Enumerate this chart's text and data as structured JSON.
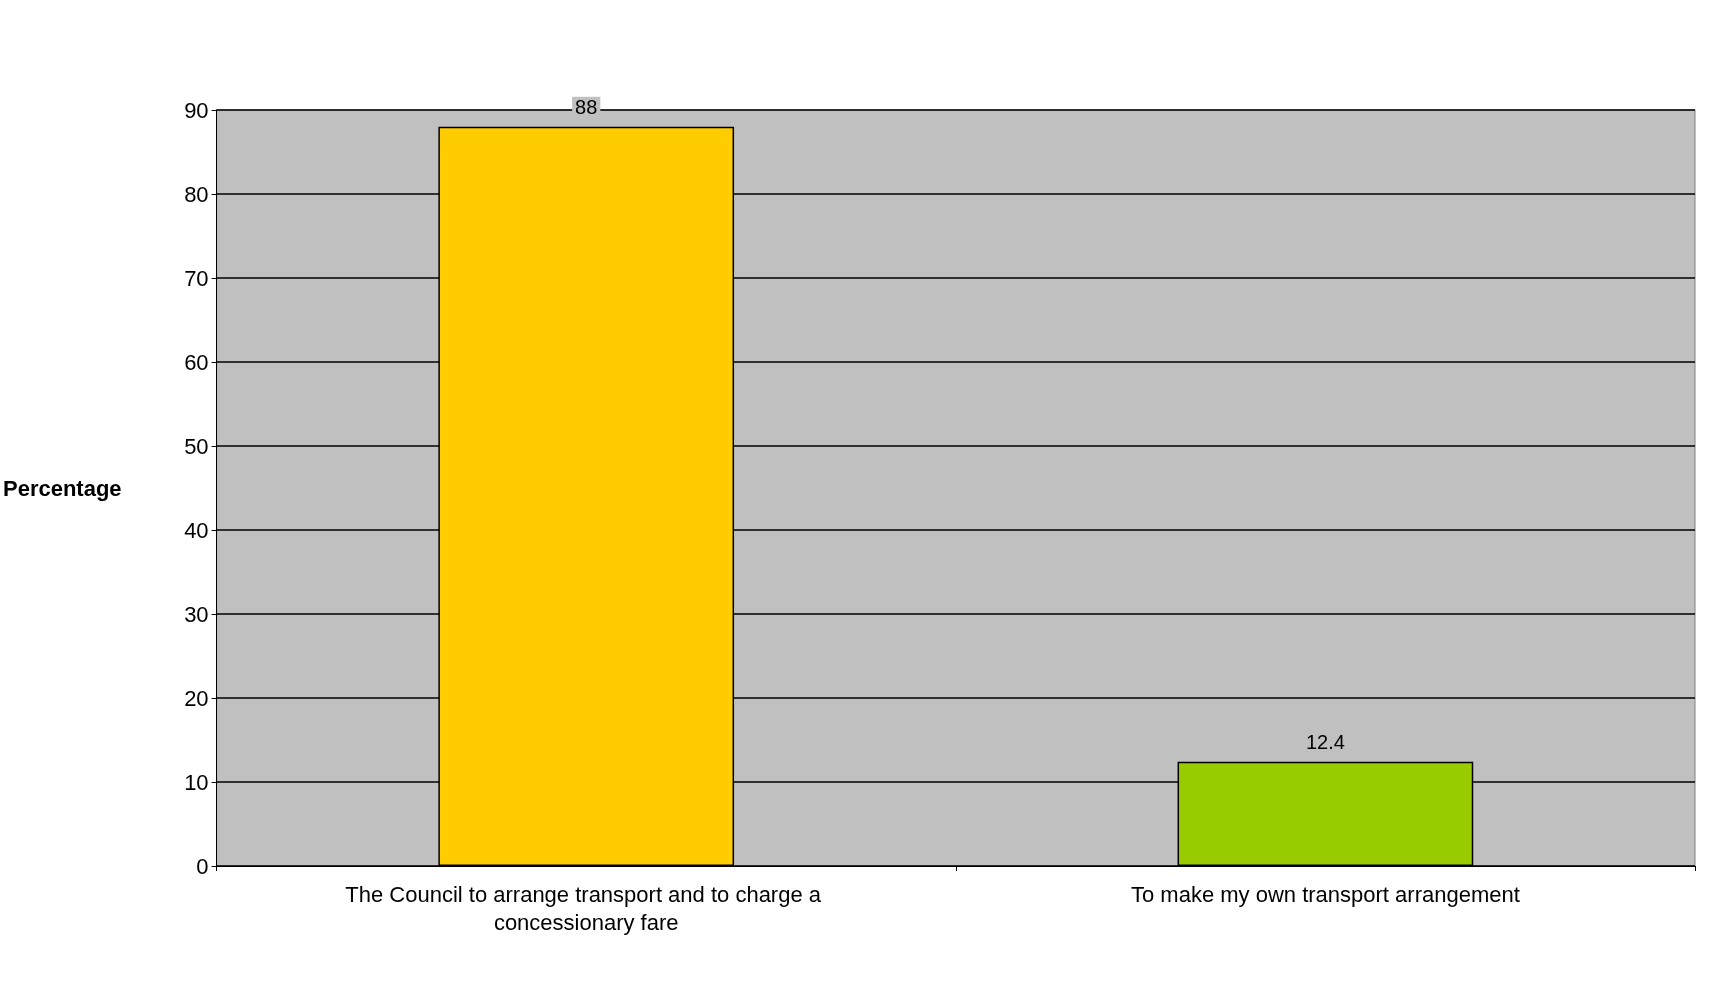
{
  "chart_data": {
    "type": "bar",
    "ylabel": "Percentage",
    "categories": [
      "The Council to arrange transport and to charge a concessionary fare",
      "To make my own transport arrangement"
    ],
    "values": [
      88,
      12.4
    ],
    "colors": [
      "#ffcc00",
      "#99cc00"
    ],
    "ylim": [
      0,
      90
    ],
    "yticks": [
      0,
      10,
      20,
      30,
      40,
      50,
      60,
      70,
      80,
      90
    ],
    "grid": "y",
    "data_labels": true
  }
}
